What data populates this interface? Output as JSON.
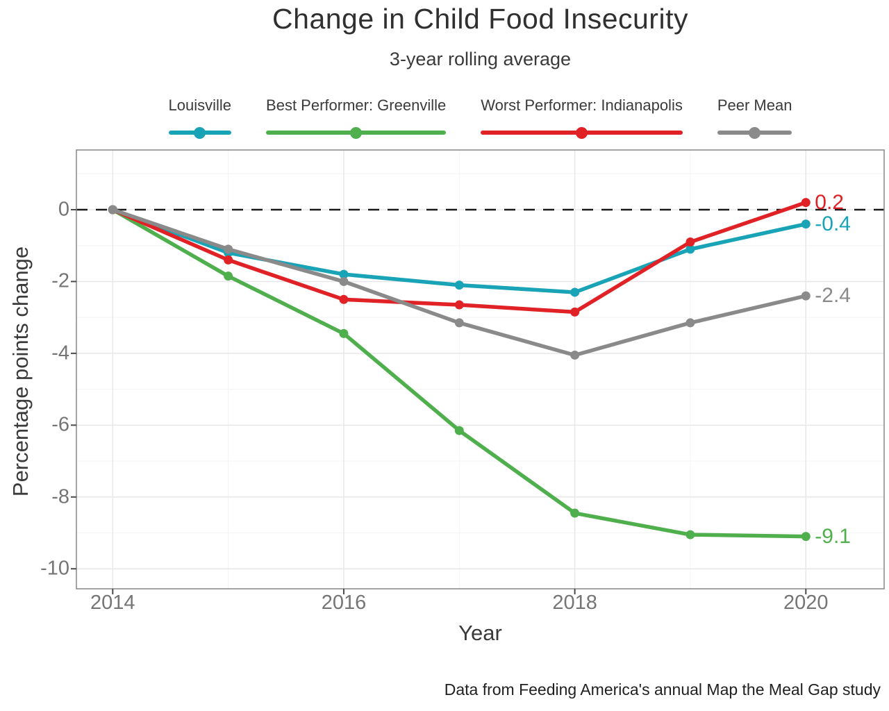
{
  "title": "Change in Child Food Insecurity",
  "subtitle": "3-year rolling average",
  "caption": "Data from Feeding America's annual Map the Meal Gap study",
  "axes": {
    "x_label": "Year",
    "y_label": "Percentage points change",
    "x_ticks": [
      "2014",
      "2016",
      "2018",
      "2020"
    ],
    "y_ticks": [
      "0",
      "-2",
      "-4",
      "-6",
      "-8",
      "-10"
    ]
  },
  "colors": {
    "louisville": "#19A3B7",
    "greenville": "#4FAF4D",
    "indianapolis": "#E02227",
    "peer_mean": "#8A8A8A",
    "zero_line": "#1a1a1a",
    "tick_text": "#757575",
    "panel_border": "#8d8d8d"
  },
  "chart_data": {
    "type": "line",
    "x": [
      2014,
      2015,
      2016,
      2017,
      2018,
      2019,
      2020
    ],
    "xlabel": "Year",
    "ylabel": "Percentage points change",
    "xlim": [
      2013.7,
      2020.7
    ],
    "ylim": [
      -10.6,
      1.7
    ],
    "grid": true,
    "legend_position": "top",
    "reference_line": {
      "y": 0,
      "style": "dashed",
      "color": "#1a1a1a"
    },
    "x_major_ticks": [
      2014,
      2016,
      2018,
      2020
    ],
    "x_minor_ticks": [
      2015,
      2017,
      2019
    ],
    "y_major_ticks": [
      0,
      -2,
      -4,
      -6,
      -8,
      -10
    ],
    "y_minor_ticks": [
      1,
      -1,
      -3,
      -5,
      -7,
      -9
    ],
    "series": [
      {
        "name": "Louisville",
        "color": "#19A3B7",
        "values": [
          0,
          -1.2,
          -1.8,
          -2.1,
          -2.3,
          -1.1,
          -0.4
        ],
        "end_label": "-0.4"
      },
      {
        "name": "Best Performer: Greenville",
        "color": "#4FAF4D",
        "values": [
          0,
          -1.85,
          -3.45,
          -6.15,
          -8.45,
          -9.05,
          -9.1
        ],
        "end_label": "-9.1"
      },
      {
        "name": "Worst Performer: Indianapolis",
        "color": "#E02227",
        "values": [
          0,
          -1.4,
          -2.5,
          -2.65,
          -2.85,
          -0.9,
          0.2
        ],
        "end_label": "0.2"
      },
      {
        "name": "Peer Mean",
        "color": "#8A8A8A",
        "values": [
          0,
          -1.1,
          -2.0,
          -3.15,
          -4.05,
          -3.15,
          -2.4
        ],
        "end_label": "-2.4"
      }
    ],
    "draw_order": [
      0,
      1,
      2,
      3
    ]
  }
}
